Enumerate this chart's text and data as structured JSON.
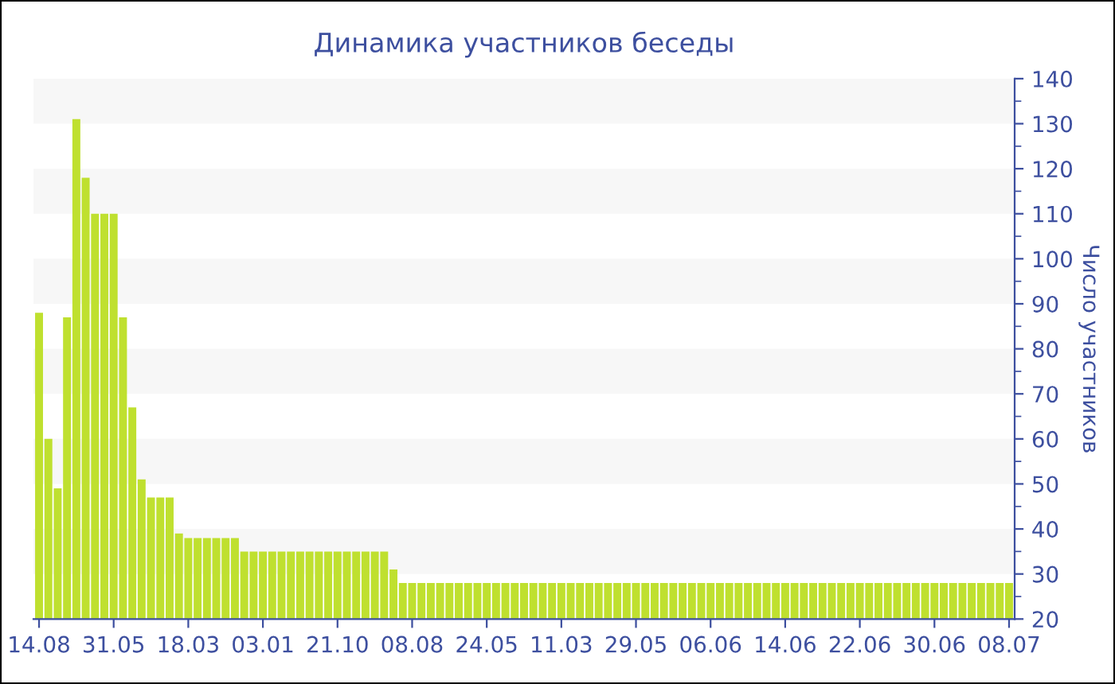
{
  "chart_data": {
    "type": "bar",
    "title": "Динамика участников беседы",
    "ylabel": "Число участников",
    "categories": [
      "14.08",
      null,
      null,
      null,
      null,
      null,
      null,
      null,
      "31.05",
      null,
      null,
      null,
      null,
      null,
      null,
      null,
      "18.03",
      null,
      null,
      null,
      null,
      null,
      null,
      null,
      "03.01",
      null,
      null,
      null,
      null,
      null,
      null,
      null,
      "21.10",
      null,
      null,
      null,
      null,
      null,
      null,
      null,
      "08.08",
      null,
      null,
      null,
      null,
      null,
      null,
      null,
      "24.05",
      null,
      null,
      null,
      null,
      null,
      null,
      null,
      "11.03",
      null,
      null,
      null,
      null,
      null,
      null,
      null,
      "29.05",
      null,
      null,
      null,
      null,
      null,
      null,
      null,
      "06.06",
      null,
      null,
      null,
      null,
      null,
      null,
      null,
      "14.06",
      null,
      null,
      null,
      null,
      null,
      null,
      null,
      "22.06",
      null,
      null,
      null,
      null,
      null,
      null,
      null,
      "30.06",
      null,
      null,
      null,
      null,
      null,
      null,
      null,
      "08.07"
    ],
    "values": [
      88,
      60,
      49,
      87,
      131,
      118,
      110,
      110,
      110,
      87,
      67,
      51,
      47,
      47,
      47,
      39,
      38,
      38,
      38,
      38,
      38,
      38,
      35,
      35,
      35,
      35,
      35,
      35,
      35,
      35,
      35,
      35,
      35,
      35,
      35,
      35,
      35,
      35,
      31,
      28,
      28,
      28,
      28,
      28,
      28,
      28,
      28,
      28,
      28,
      28,
      28,
      28,
      28,
      28,
      28,
      28,
      28,
      28,
      28,
      28,
      28,
      28,
      28,
      28,
      28,
      28,
      28,
      28,
      28,
      28,
      28,
      28,
      28,
      28,
      28,
      28,
      28,
      28,
      28,
      28,
      28,
      28,
      28,
      28,
      28,
      28,
      28,
      28,
      28,
      28,
      28,
      28,
      28,
      28,
      28,
      28,
      28,
      28,
      28,
      28,
      28,
      28,
      28,
      28,
      28
    ],
    "color": "#bfe02f",
    "ylim": [
      20,
      140
    ],
    "yticks": [
      20,
      30,
      40,
      50,
      60,
      70,
      80,
      90,
      100,
      110,
      120,
      130,
      140
    ],
    "bands": [
      {
        "axis": "y",
        "from": 30,
        "to": 40,
        "color": "#f7f7f7"
      },
      {
        "axis": "y",
        "from": 50,
        "to": 60,
        "color": "#f7f7f7"
      },
      {
        "axis": "y",
        "from": 70,
        "to": 80,
        "color": "#f7f7f7"
      },
      {
        "axis": "y",
        "from": 90,
        "to": 100,
        "color": "#f7f7f7"
      },
      {
        "axis": "y",
        "from": 110,
        "to": 120,
        "color": "#f7f7f7"
      },
      {
        "axis": "y",
        "from": 130,
        "to": 140,
        "color": "#f7f7f7"
      }
    ],
    "legend": false
  }
}
